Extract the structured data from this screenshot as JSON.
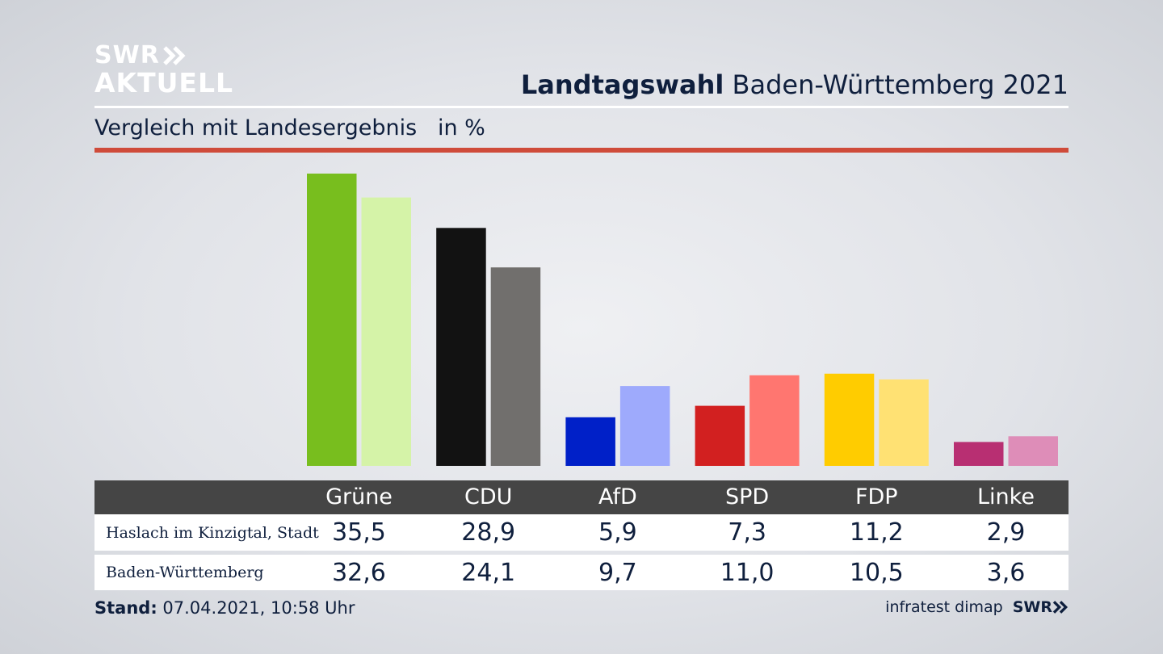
{
  "logo": {
    "line1": "SWR",
    "line2": "AKTUELL"
  },
  "header": {
    "title_bold": "Landtagswahl",
    "title_rest": " Baden-Württemberg 2021"
  },
  "subtitle": "Vergleich mit Landesergebnis   in %",
  "colors": {
    "accent_rule": "#cf4b3a",
    "table_header": "#454545"
  },
  "chart_data": {
    "type": "bar",
    "categories": [
      "Grüne",
      "CDU",
      "AfD",
      "SPD",
      "FDP",
      "Linke"
    ],
    "series": [
      {
        "name": "Haslach im Kinzigtal, Stadt",
        "values": [
          35.5,
          28.9,
          5.9,
          7.3,
          11.2,
          2.9
        ],
        "colors": [
          "#78be1e",
          "#121212",
          "#0020c8",
          "#d22020",
          "#ffcc00",
          "#b82f72"
        ]
      },
      {
        "name": "Baden-Württemberg",
        "values": [
          32.6,
          24.1,
          9.7,
          11.0,
          10.5,
          3.6
        ],
        "colors": [
          "#d5f3a8",
          "#716f6d",
          "#9eaafc",
          "#ff7670",
          "#ffe173",
          "#de8db8"
        ]
      }
    ],
    "ylim": [
      0,
      35.5
    ],
    "grid": false,
    "legend": "table-below"
  },
  "table": {
    "headers": [
      "Grüne",
      "CDU",
      "AfD",
      "SPD",
      "FDP",
      "Linke"
    ],
    "rows": [
      {
        "label": "Haslach im Kinzigtal, Stadt",
        "values": [
          "35,5",
          "28,9",
          "5,9",
          "7,3",
          "11,2",
          "2,9"
        ]
      },
      {
        "label": "Baden-Württemberg",
        "values": [
          "32,6",
          "24,1",
          "9,7",
          "11,0",
          "10,5",
          "3,6"
        ]
      }
    ]
  },
  "footer": {
    "stand_label": "Stand:",
    "stand_value": " 07.04.2021, 10:58 Uhr",
    "source": "infratest dimap",
    "swr": "SWR"
  }
}
